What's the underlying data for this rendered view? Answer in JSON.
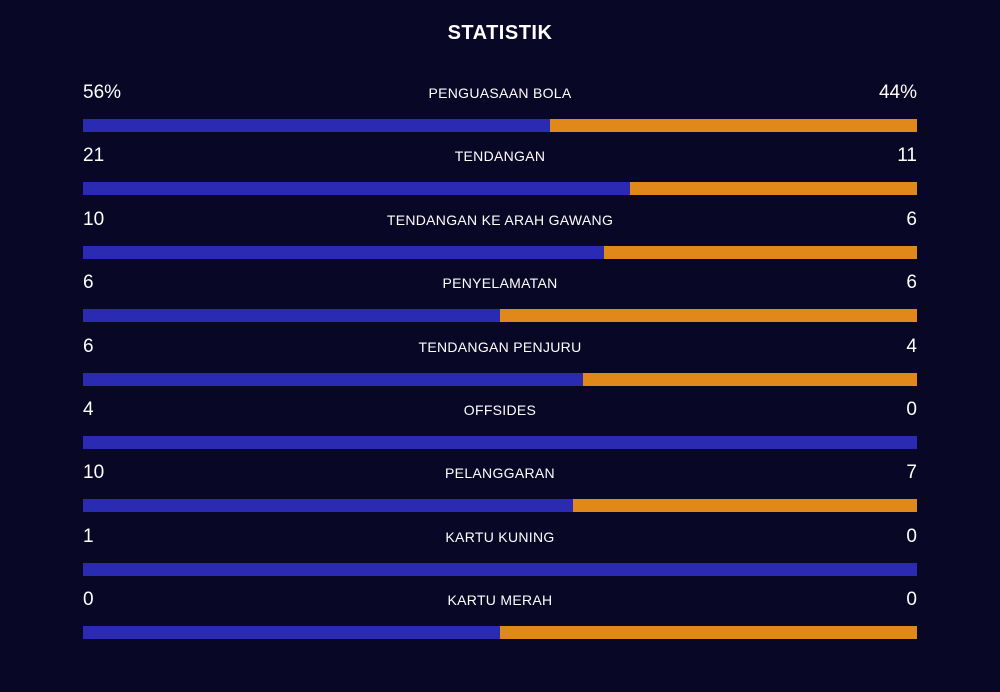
{
  "title": "STATISTIK",
  "colors": {
    "background": "#080725",
    "home": "#2a2ab3",
    "away": "#e0881a"
  },
  "stats": [
    {
      "label": "PENGUASAAN BOLA",
      "home": "56%",
      "away": "44%",
      "home_share": 0.56
    },
    {
      "label": "TENDANGAN",
      "home": "21",
      "away": "11",
      "home_share": 0.656
    },
    {
      "label": "TENDANGAN KE ARAH GAWANG",
      "home": "10",
      "away": "6",
      "home_share": 0.625
    },
    {
      "label": "PENYELAMATAN",
      "home": "6",
      "away": "6",
      "home_share": 0.5
    },
    {
      "label": "TENDANGAN PENJURU",
      "home": "6",
      "away": "4",
      "home_share": 0.6
    },
    {
      "label": "OFFSIDES",
      "home": "4",
      "away": "0",
      "home_share": 1.0
    },
    {
      "label": "PELANGGARAN",
      "home": "10",
      "away": "7",
      "home_share": 0.588
    },
    {
      "label": "KARTU KUNING",
      "home": "1",
      "away": "0",
      "home_share": 1.0
    },
    {
      "label": "KARTU MERAH",
      "home": "0",
      "away": "0",
      "home_share": 0.5
    }
  ]
}
